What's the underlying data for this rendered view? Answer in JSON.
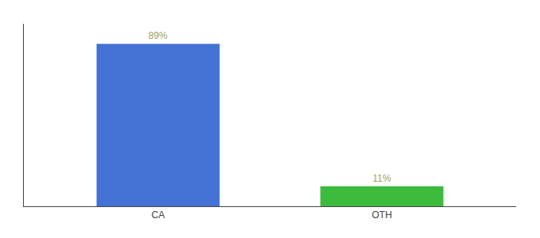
{
  "chart_data": {
    "type": "bar",
    "categories": [
      "CA",
      "OTH"
    ],
    "values": [
      89,
      11
    ],
    "value_labels": [
      "89%",
      "11%"
    ],
    "colors": [
      "#4472d4",
      "#3dbb3d"
    ],
    "ylim": [
      0,
      100
    ],
    "data_labels": true,
    "tick_labels": "x",
    "grid": false
  }
}
